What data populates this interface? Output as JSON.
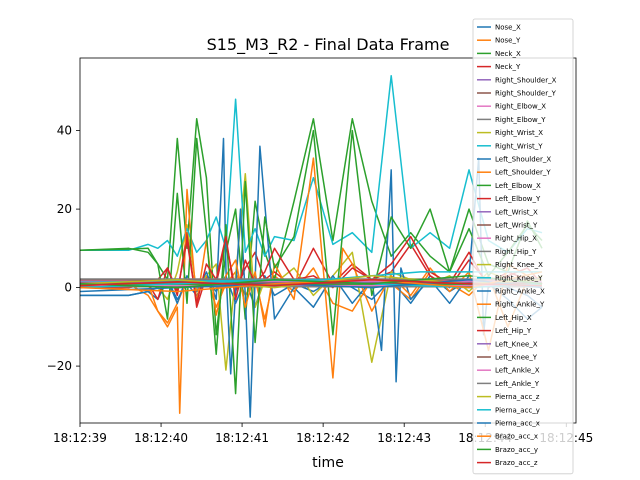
{
  "chart_data": {
    "type": "line",
    "title": "S15_M3_R2 - Final Data Frame",
    "xlabel": "time",
    "ylabel": "",
    "xlim": [
      0,
      102
    ],
    "ylim": [
      -34.5,
      58.5
    ],
    "x_ticks": [
      {
        "pos": 0,
        "label": "18:12:39"
      },
      {
        "pos": 16.67,
        "label": "18:12:40"
      },
      {
        "pos": 33.33,
        "label": "18:12:41"
      },
      {
        "pos": 50,
        "label": "18:12:42"
      },
      {
        "pos": 66.67,
        "label": "18:12:43"
      },
      {
        "pos": 83.33,
        "label": "18:12:44"
      },
      {
        "pos": 100,
        "label": "18:12:45"
      }
    ],
    "y_ticks": [
      -20,
      0,
      20,
      40
    ],
    "grid": false,
    "legend_position": "right, outside plot (overlapping)",
    "series": [
      {
        "name": "Nose_X",
        "color": "#1f77b4",
        "x": [
          0,
          10,
          14,
          16,
          18,
          20,
          22,
          24,
          26,
          28,
          30,
          32,
          34,
          36,
          38,
          40,
          44,
          48,
          52,
          56,
          60,
          64,
          68,
          72,
          76,
          80,
          84,
          88,
          92,
          95
        ],
        "y": [
          -2,
          -2,
          -1,
          0,
          2,
          -3,
          1,
          -2,
          2,
          -1,
          3,
          -4,
          2,
          -5,
          3,
          -2,
          1,
          -1,
          2,
          0,
          -3,
          2,
          -4,
          3,
          -1,
          2,
          1,
          0,
          -2,
          -5
        ]
      },
      {
        "name": "Nose_Y",
        "color": "#ff7f0e",
        "x": [
          0,
          10,
          14,
          16,
          18,
          20,
          22,
          24,
          26,
          28,
          30,
          32,
          34,
          36,
          38,
          40,
          44,
          48,
          52,
          56,
          60,
          64,
          68,
          72,
          76,
          80,
          84,
          88,
          92,
          95
        ],
        "y": [
          0,
          1,
          -2,
          -6,
          -9,
          -4,
          2,
          0,
          3,
          -5,
          1,
          4,
          -2,
          2,
          -8,
          3,
          -1,
          5,
          -4,
          -6,
          2,
          1,
          -3,
          4,
          1,
          -2,
          3,
          -10,
          2,
          1
        ]
      },
      {
        "name": "Neck_X",
        "color": "#2ca02c",
        "x": [
          0,
          10,
          14,
          16,
          18,
          20,
          22,
          24,
          26,
          28,
          30,
          32,
          34,
          36,
          38,
          40,
          44,
          48,
          52,
          56,
          60,
          64,
          68,
          72,
          76,
          80,
          84,
          88,
          92,
          95
        ],
        "y": [
          9.5,
          10,
          9,
          6,
          2,
          38,
          10,
          43,
          28,
          -12,
          9,
          20,
          -8,
          22,
          9,
          2,
          22,
          43,
          12,
          43,
          22,
          8,
          14,
          8,
          4,
          20,
          6,
          4,
          17,
          10
        ]
      },
      {
        "name": "Neck_Y",
        "color": "#d62728",
        "x": [
          0,
          10,
          14,
          16,
          18,
          20,
          22,
          24,
          26,
          28,
          30,
          32,
          34,
          36,
          38,
          40,
          44,
          48,
          52,
          56,
          60,
          64,
          68,
          72,
          76,
          80,
          84,
          88,
          92,
          95
        ],
        "y": [
          0.5,
          0.5,
          1,
          2,
          5,
          -2,
          14,
          -5,
          3,
          1,
          12,
          -1,
          5,
          9,
          2,
          4,
          0,
          10,
          1,
          6,
          2,
          4,
          11,
          3,
          0,
          7,
          1,
          4,
          2,
          0
        ]
      },
      {
        "name": "Right_Shoulder_X",
        "color": "#9467bd",
        "x": [
          0,
          95
        ],
        "y": [
          1.8,
          1.8
        ]
      },
      {
        "name": "Right_Shoulder_Y",
        "color": "#8c564b",
        "x": [
          0,
          95
        ],
        "y": [
          1.2,
          1.2
        ]
      },
      {
        "name": "Right_Elbow_X",
        "color": "#e377c2",
        "x": [
          0,
          95
        ],
        "y": [
          0.8,
          0.8
        ]
      },
      {
        "name": "Right_Elbow_Y",
        "color": "#7f7f7f",
        "x": [
          0,
          95
        ],
        "y": [
          1.0,
          1.0
        ]
      },
      {
        "name": "Right_Wrist_X",
        "color": "#bcbd22",
        "x": [
          0,
          10,
          14,
          16,
          18,
          20,
          22,
          24,
          26,
          28,
          30,
          32,
          34,
          36,
          38,
          40,
          44,
          48,
          52,
          56,
          60,
          64,
          68,
          72,
          76,
          80,
          84,
          88,
          92,
          95
        ],
        "y": [
          1,
          1,
          2,
          0,
          -3,
          4,
          16,
          -1,
          3,
          6,
          -21,
          3,
          29,
          -5,
          2,
          1,
          5,
          -2,
          3,
          9,
          -19,
          4,
          2,
          1,
          3,
          -1,
          4,
          2,
          1,
          3
        ]
      },
      {
        "name": "Right_Wrist_Y",
        "color": "#17becf",
        "x": [
          0,
          10,
          14,
          16,
          18,
          20,
          22,
          24,
          26,
          28,
          30,
          32,
          34,
          36,
          38,
          40,
          44,
          48,
          52,
          56,
          60,
          64,
          68,
          72,
          76,
          80,
          84,
          88,
          92,
          95
        ],
        "y": [
          9.5,
          9.5,
          11,
          10,
          12,
          8,
          15,
          9,
          12,
          18,
          10,
          48,
          9,
          15,
          8,
          13,
          12,
          28,
          11,
          14,
          9,
          54,
          10,
          14,
          10,
          30,
          12,
          9,
          15,
          14
        ]
      },
      {
        "name": "Left_Shoulder_X",
        "color": "#1f77b4",
        "x": [
          0,
          10,
          14,
          16,
          18,
          20,
          22,
          24,
          26,
          28,
          29.5,
          30,
          31,
          33,
          34,
          35,
          37,
          40,
          44,
          48,
          52,
          56,
          60,
          62,
          64,
          65,
          66,
          68,
          72,
          76,
          80,
          82,
          83,
          84,
          88,
          92,
          95
        ],
        "y": [
          -2,
          -2,
          -1,
          -3,
          2,
          -4,
          3,
          -1,
          4,
          -3,
          38,
          5,
          -22,
          20,
          -2,
          -33,
          36,
          -8,
          0,
          -5,
          3,
          -4,
          2,
          -16,
          30,
          -24,
          5,
          -3,
          2,
          -4,
          3,
          33,
          -12,
          1,
          -3,
          -8,
          -5
        ]
      },
      {
        "name": "Left_Shoulder_Y",
        "color": "#ff7f0e",
        "x": [
          0,
          10,
          14,
          16,
          18,
          20,
          20.5,
          22,
          24,
          26,
          28,
          30,
          32,
          34,
          36,
          38,
          40,
          44,
          48,
          52,
          54,
          56,
          60,
          64,
          68,
          72,
          76,
          80,
          84,
          88,
          92,
          95
        ],
        "y": [
          0,
          0,
          1,
          -6,
          -10,
          -5,
          -32,
          25,
          -4,
          12,
          -7,
          3,
          7,
          -5,
          4,
          -10,
          6,
          -3,
          33,
          -23,
          10,
          6,
          -6,
          3,
          -2,
          5,
          -1,
          4,
          -16,
          6,
          3,
          1
        ]
      },
      {
        "name": "Left_Elbow_X",
        "color": "#2ca02c",
        "x": [
          0,
          10,
          14,
          16,
          18,
          20,
          22,
          24,
          26,
          28,
          30,
          32,
          34,
          36,
          38,
          40,
          44,
          48,
          52,
          56,
          60,
          64,
          68,
          72,
          76,
          80,
          84,
          88,
          92,
          95
        ],
        "y": [
          9.5,
          9.8,
          10,
          6,
          -8,
          24,
          -4,
          38,
          14,
          -17,
          16,
          -27,
          27,
          -14,
          18,
          5,
          13,
          40,
          -12,
          40,
          -2,
          18,
          10,
          20,
          4,
          15,
          3,
          9,
          16,
          12
        ]
      },
      {
        "name": "Left_Elbow_Y",
        "color": "#d62728",
        "x": [
          0,
          10,
          14,
          16,
          18,
          20,
          22,
          24,
          26,
          28,
          30,
          32,
          34,
          36,
          38,
          40,
          44,
          48,
          52,
          56,
          60,
          64,
          68,
          72,
          76,
          80,
          84,
          88,
          92,
          95
        ],
        "y": [
          0,
          0,
          1,
          -3,
          5,
          -1,
          12,
          -4,
          6,
          2,
          13,
          -3,
          7,
          1,
          4,
          10,
          2,
          3,
          0,
          5,
          2,
          6,
          13,
          4,
          1,
          9,
          0,
          3,
          5,
          1
        ]
      },
      {
        "name": "Left_Wrist_X",
        "color": "#9467bd",
        "x": [
          0,
          95
        ],
        "y": [
          1.5,
          1.5
        ]
      },
      {
        "name": "Left_Wrist_Y",
        "color": "#8c564b",
        "x": [
          0,
          95
        ],
        "y": [
          2.0,
          2.0
        ]
      },
      {
        "name": "Right_Hip_X",
        "color": "#e377c2",
        "x": [
          0,
          95
        ],
        "y": [
          1.6,
          1.6
        ]
      },
      {
        "name": "Right_Hip_Y",
        "color": "#7f7f7f",
        "x": [
          0,
          95
        ],
        "y": [
          2.2,
          2.2
        ]
      },
      {
        "name": "Right_Knee_X",
        "color": "#bcbd22",
        "x": [
          0,
          95
        ],
        "y": [
          0.9,
          0.9
        ]
      },
      {
        "name": "Right_Knee_Y",
        "color": "#17becf",
        "x": [
          0,
          50,
          60,
          70,
          80,
          95
        ],
        "y": [
          1.4,
          2,
          3,
          4,
          4,
          4
        ]
      },
      {
        "name": "Right_Ankle_X",
        "color": "#1f77b4",
        "x": [
          0,
          95
        ],
        "y": [
          0.6,
          0.6
        ]
      },
      {
        "name": "Right_Ankle_Y",
        "color": "#ff7f0e",
        "x": [
          0,
          95
        ],
        "y": [
          0.4,
          0.4
        ]
      },
      {
        "name": "Left_Hip_X",
        "color": "#2ca02c",
        "x": [
          0,
          95
        ],
        "y": [
          0.7,
          0.7
        ]
      },
      {
        "name": "Left_Hip_Y",
        "color": "#d62728",
        "x": [
          0,
          95
        ],
        "y": [
          0.3,
          0.3
        ]
      },
      {
        "name": "Left_Knee_X",
        "color": "#9467bd",
        "x": [
          0,
          95
        ],
        "y": [
          1.3,
          1.3
        ]
      },
      {
        "name": "Left_Knee_Y",
        "color": "#8c564b",
        "x": [
          0,
          95
        ],
        "y": [
          1.1,
          1.1
        ]
      },
      {
        "name": "Left_Ankle_X",
        "color": "#e377c2",
        "x": [
          0,
          95
        ],
        "y": [
          0.5,
          0.5
        ]
      },
      {
        "name": "Left_Ankle_Y",
        "color": "#7f7f7f",
        "x": [
          0,
          95
        ],
        "y": [
          0.2,
          0.2
        ]
      },
      {
        "name": "Pierna_acc_z",
        "color": "#bcbd22",
        "x": [
          0,
          20,
          40,
          60,
          80,
          95
        ],
        "y": [
          1,
          2,
          0,
          3,
          1,
          2
        ]
      },
      {
        "name": "Pierna_acc_y",
        "color": "#17becf",
        "x": [
          0,
          20,
          40,
          60,
          80,
          95
        ],
        "y": [
          0,
          1,
          2,
          1,
          0,
          1
        ]
      },
      {
        "name": "Pierna_acc_x",
        "color": "#1f77b4",
        "x": [
          0,
          20,
          40,
          60,
          80,
          95
        ],
        "y": [
          -1,
          0,
          1,
          0,
          2,
          0
        ]
      },
      {
        "name": "Brazo_acc_x",
        "color": "#ff7f0e",
        "x": [
          0,
          20,
          40,
          60,
          80,
          95
        ],
        "y": [
          0,
          -1,
          1,
          2,
          0,
          4
        ]
      },
      {
        "name": "Brazo_acc_y",
        "color": "#2ca02c",
        "x": [
          0,
          20,
          40,
          60,
          80,
          95
        ],
        "y": [
          1,
          0,
          2,
          1,
          3,
          1
        ]
      },
      {
        "name": "Brazo_acc_z",
        "color": "#d62728",
        "x": [
          0,
          20,
          40,
          60,
          80,
          95
        ],
        "y": [
          0.5,
          1.5,
          0.5,
          2,
          1,
          0.5
        ]
      }
    ]
  }
}
